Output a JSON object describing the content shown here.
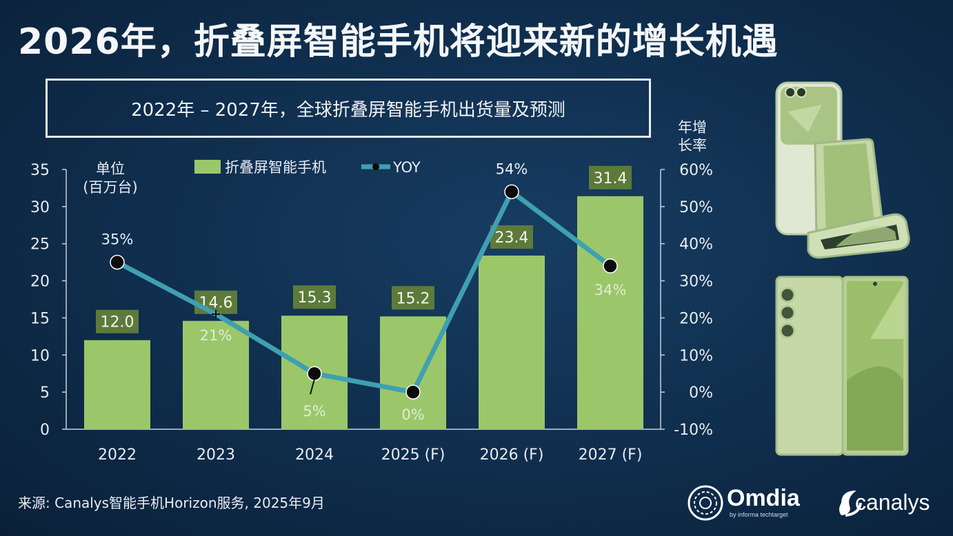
{
  "title": "2026年，折叠屏智能手机将迎来新的增长机遇",
  "chart_data": {
    "type": "bar",
    "title": "2022年 – 2027年，全球折叠屏智能手机出货量及预测",
    "categories": [
      "2022",
      "2023",
      "2024",
      "2025 (F)",
      "2026 (F)",
      "2027 (F)"
    ],
    "series": [
      {
        "name": "折叠屏智能手机",
        "type": "bar",
        "axis": "left",
        "values": [
          12.0,
          14.6,
          15.3,
          15.2,
          23.4,
          31.4
        ],
        "labels": [
          "12.0",
          "14.6",
          "15.3",
          "15.2",
          "23.4",
          "31.4"
        ],
        "color": "#9bc76a"
      },
      {
        "name": "YOY",
        "type": "line",
        "axis": "right",
        "values": [
          35,
          21,
          5,
          0,
          54,
          34
        ],
        "labels": [
          "35%",
          "21%",
          "5%",
          "0%",
          "54%",
          "34%"
        ],
        "color": "#3fa0b2"
      }
    ],
    "ylabel_left": "单位\n(百万台)",
    "ylabel_right": "年增\n长率",
    "ylim_left": [
      0,
      35
    ],
    "ylim_right": [
      -10,
      60
    ],
    "yticks_left": [
      "0",
      "5",
      "10",
      "15",
      "20",
      "25",
      "30",
      "35"
    ],
    "yticks_right": [
      "-10%",
      "0%",
      "10%",
      "20%",
      "30%",
      "40%",
      "50%",
      "60%"
    ],
    "grid": false,
    "legend_position": "top"
  },
  "source": "来源: Canalys智能手机Horizon服务, 2025年9月",
  "logos": {
    "omdia": "Omdia",
    "omdia_sub": "by informa techtarget",
    "canalys": "canalys"
  },
  "colors": {
    "bar": "#9bc76a",
    "bar_label_bg": "#5d7a3a",
    "line": "#3fa0b2",
    "marker": "#0b0b0b",
    "background": "#12355a"
  }
}
